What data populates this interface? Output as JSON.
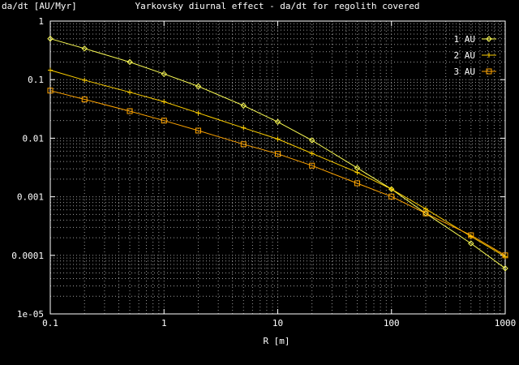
{
  "chart_data": {
    "type": "line",
    "title": "Yarkovsky diurnal effect - da/dt for regolith covered",
    "xlabel": "R [m]",
    "ylabel": "da/dt [AU/Myr]",
    "xscale": "log",
    "yscale": "log",
    "xlim": [
      0.1,
      1000
    ],
    "ylim": [
      1e-05,
      1
    ],
    "x_ticks": [
      "0.1",
      "1",
      "10",
      "100",
      "1000"
    ],
    "y_ticks": [
      "1e-05",
      "0.0001",
      "0.001",
      "0.01",
      "0.1",
      "1"
    ],
    "grid": true,
    "legend_position": "top-right",
    "x": [
      0.1,
      0.2,
      0.5,
      1,
      2,
      5,
      10,
      20,
      50,
      100,
      200,
      500,
      1000
    ],
    "series": [
      {
        "name": "1 AU",
        "color": "#ffff55",
        "marker": "diamond",
        "values": [
          0.5,
          0.34,
          0.2,
          0.125,
          0.077,
          0.036,
          0.019,
          0.0092,
          0.0031,
          0.00135,
          0.00052,
          0.00016,
          6e-05
        ]
      },
      {
        "name": "2 AU",
        "color": "#ffd000",
        "marker": "plus",
        "values": [
          0.145,
          0.098,
          0.061,
          0.042,
          0.027,
          0.015,
          0.0097,
          0.0055,
          0.0026,
          0.00135,
          0.00062,
          0.00021,
          9.5e-05
        ]
      },
      {
        "name": "3 AU",
        "color": "#ffa500",
        "marker": "square",
        "values": [
          0.065,
          0.046,
          0.029,
          0.02,
          0.0135,
          0.0079,
          0.0054,
          0.0034,
          0.0017,
          0.00101,
          0.00052,
          0.00022,
          0.0001
        ]
      }
    ]
  }
}
